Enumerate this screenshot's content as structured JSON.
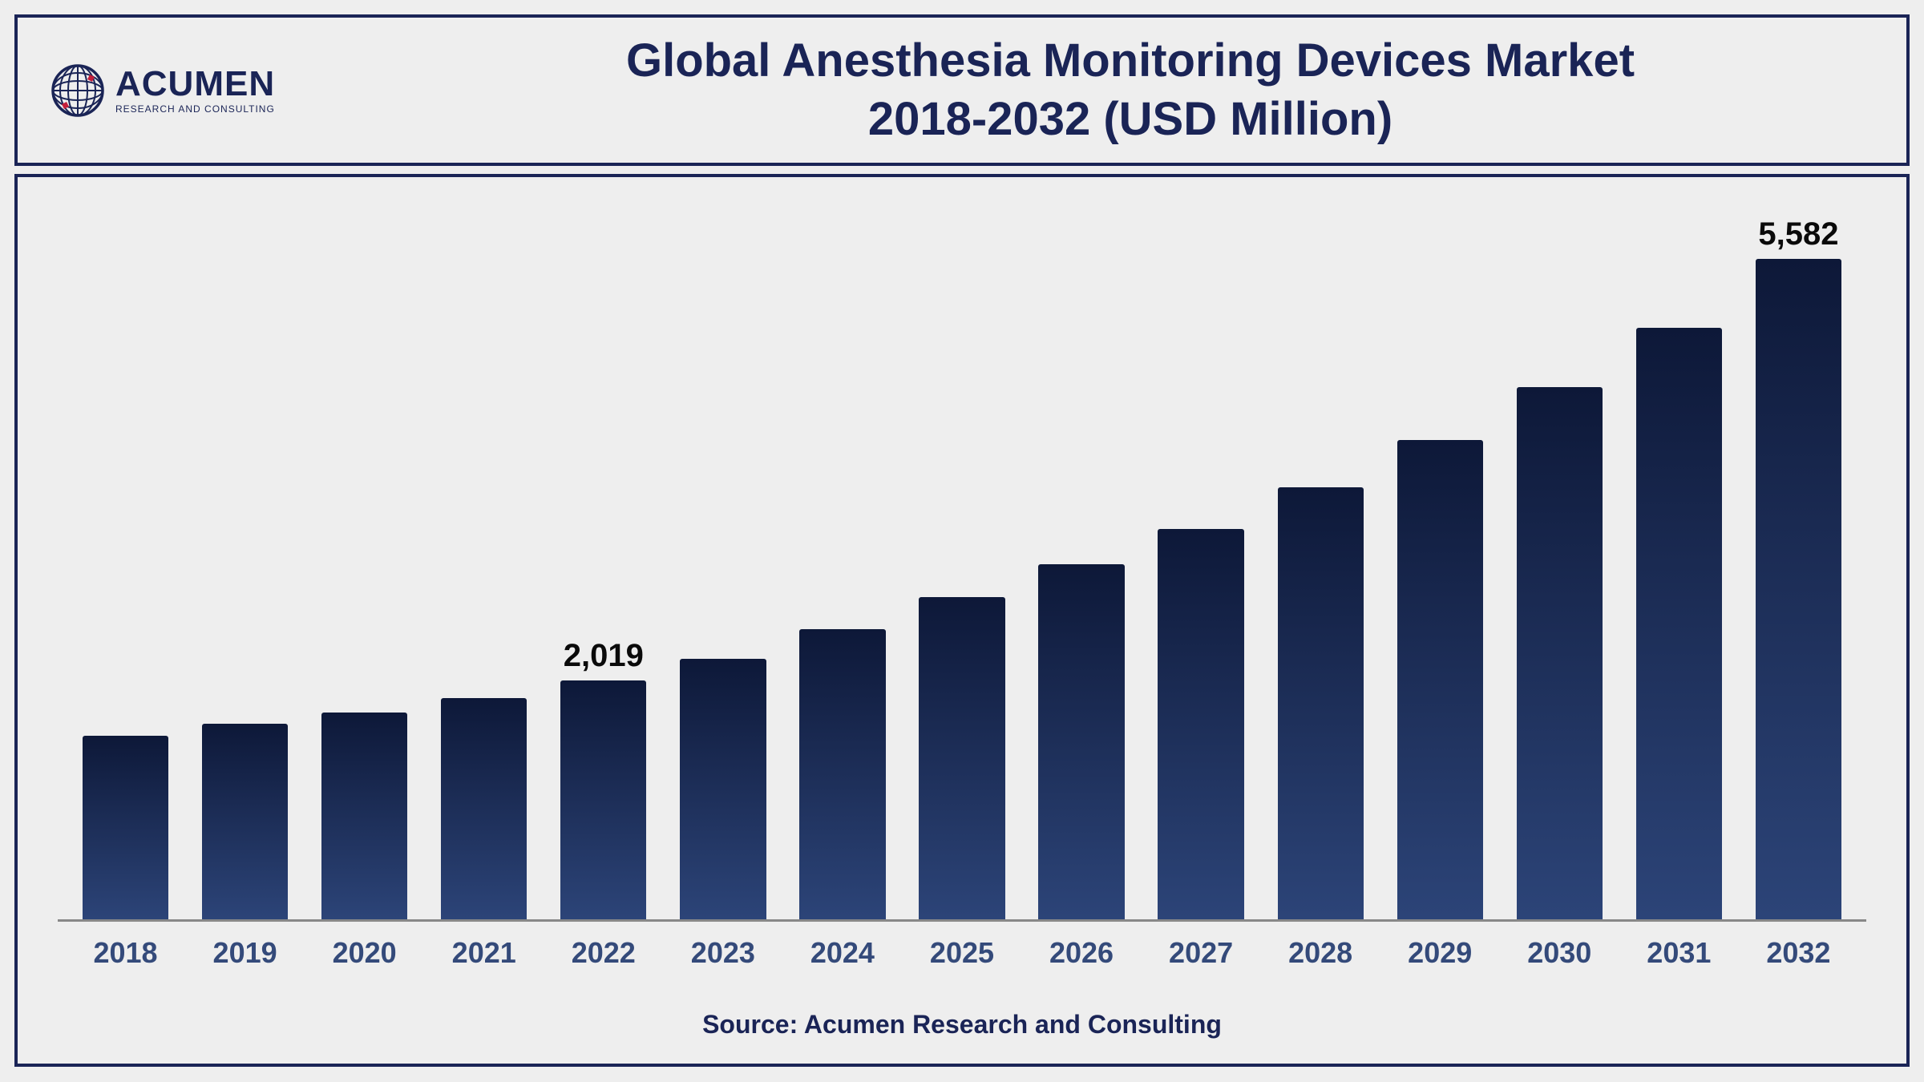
{
  "logo": {
    "brand": "ACUMEN",
    "tagline": "RESEARCH AND CONSULTING",
    "globe_color": "#1a2456",
    "accent_color": "#c41e3a"
  },
  "title": {
    "line1": "Global Anesthesia Monitoring Devices Market",
    "line2": "2018-2032 (USD Million)",
    "color": "#1a2456",
    "fontsize": 58
  },
  "chart": {
    "type": "bar",
    "categories": [
      "2018",
      "2019",
      "2020",
      "2021",
      "2022",
      "2023",
      "2024",
      "2025",
      "2026",
      "2027",
      "2028",
      "2029",
      "2030",
      "2031",
      "2032"
    ],
    "values": [
      1550,
      1650,
      1750,
      1870,
      2019,
      2200,
      2450,
      2720,
      3000,
      3300,
      3650,
      4050,
      4500,
      5000,
      5582
    ],
    "value_labels": {
      "4": "2,019",
      "14": "5,582"
    },
    "ylim_max": 6000,
    "bar_gradient_top": "#0d1838",
    "bar_gradient_mid": "#1a2a52",
    "bar_gradient_bottom": "#2c4478",
    "bar_width_pct": 72,
    "background_color": "#eeeeee",
    "border_color": "#1a2456",
    "axis_color": "#888888",
    "xtick_color": "#344a7a",
    "xtick_fontsize": 36,
    "value_label_fontsize": 40,
    "value_label_color": "#0a0a0a"
  },
  "source": {
    "text": "Source: Acumen Research and Consulting",
    "color": "#1a2456",
    "fontsize": 32
  }
}
